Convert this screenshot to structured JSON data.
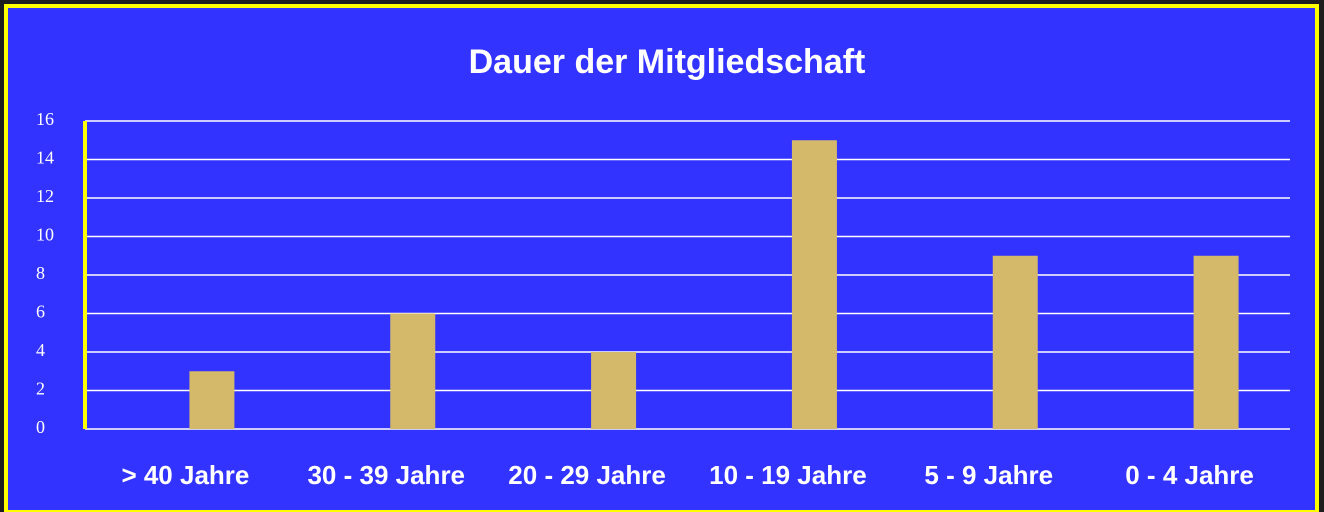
{
  "chart_data": {
    "type": "bar",
    "title": "Dauer der Mitgliedschaft",
    "categories": [
      "> 40 Jahre",
      "30 - 39 Jahre",
      "20 - 29 Jahre",
      "10 - 19 Jahre",
      "5 - 9 Jahre",
      "0 - 4 Jahre"
    ],
    "values": [
      3,
      6,
      4,
      15,
      9,
      9
    ],
    "color": "#d4b96a",
    "ylim": [
      0,
      16
    ],
    "yticks": [
      0,
      2,
      4,
      6,
      8,
      10,
      12,
      14,
      16
    ],
    "grid": true
  }
}
